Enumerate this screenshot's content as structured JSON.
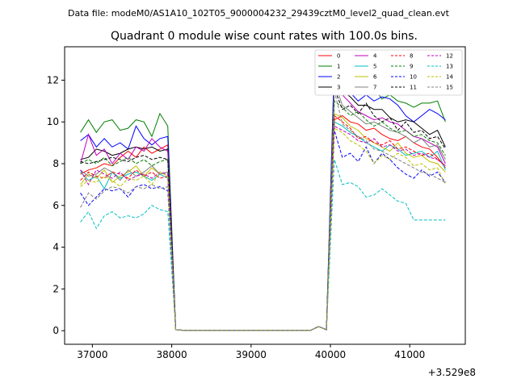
{
  "header": {
    "suptitle": "Data file: modeM0/AS1A10_102T05_9000004232_29439cztM0_level2_quad_clean.evt",
    "title": "Quadrant 0 module wise count rates with 100.0s bins."
  },
  "chart_data": {
    "type": "line",
    "title": "Quadrant 0 module wise count rates with 100.0s bins.",
    "xlabel": "",
    "ylabel": "",
    "x_offset_label": "+3.529e8",
    "x_offset": 352900000,
    "xlim": [
      36650,
      41700
    ],
    "ylim": [
      -0.65,
      13.6
    ],
    "xticks": [
      37000,
      38000,
      39000,
      40000,
      41000
    ],
    "xtick_labels": [
      "37000",
      "38000",
      "39000",
      "40000",
      "41000"
    ],
    "yticks": [
      0,
      2,
      4,
      6,
      8,
      10,
      12
    ],
    "ytick_labels": [
      "0",
      "2",
      "4",
      "6",
      "8",
      "10",
      "12"
    ],
    "x": [
      36850,
      36950,
      37050,
      37150,
      37250,
      37350,
      37450,
      37550,
      37650,
      37750,
      37850,
      37950,
      38050,
      38150,
      38250,
      38350,
      38450,
      38550,
      38650,
      38750,
      38850,
      38950,
      39050,
      39150,
      39250,
      39350,
      39450,
      39550,
      39650,
      39750,
      39850,
      39950,
      40050,
      40150,
      40250,
      40350,
      40450,
      40550,
      40650,
      40750,
      40850,
      40950,
      41050,
      41150,
      41250,
      41350,
      41450
    ],
    "legend_location": "upper right",
    "series": [
      {
        "name": "0",
        "color": "#ff0000",
        "dash": "solid",
        "pre": [
          7.5,
          7.7,
          7.8,
          8.0,
          7.9,
          8.3,
          8.6,
          8.3,
          8.8,
          8.5,
          8.7,
          8.9
        ],
        "post": [
          10.1,
          10.3,
          10.0,
          9.9,
          9.6,
          9.7,
          9.4,
          9.2,
          9.1,
          9.3,
          9.0,
          8.8,
          8.7,
          8.3,
          7.8
        ]
      },
      {
        "name": "1",
        "color": "#008000",
        "dash": "solid",
        "pre": [
          9.5,
          10.1,
          9.5,
          10.0,
          10.1,
          9.6,
          9.7,
          10.1,
          10.0,
          9.3,
          10.4,
          9.8
        ],
        "post": [
          12.8,
          12.7,
          12.3,
          12.1,
          11.8,
          11.6,
          11.1,
          11.3,
          11.0,
          10.9,
          10.7,
          10.9,
          10.9,
          11.0,
          10.0
        ]
      },
      {
        "name": "2",
        "color": "#0000ff",
        "dash": "solid",
        "pre": [
          9.1,
          9.4,
          8.8,
          9.2,
          8.8,
          9.0,
          8.7,
          9.8,
          9.2,
          8.9,
          9.2,
          9.3
        ],
        "post": [
          12.9,
          11.8,
          11.4,
          11.0,
          11.3,
          11.0,
          11.2,
          11.1,
          10.8,
          10.3,
          10.0,
          10.3,
          10.6,
          10.4,
          10.1,
          8.9
        ]
      },
      {
        "name": "3",
        "color": "#000000",
        "dash": "solid",
        "pre": [
          8.2,
          8.3,
          8.7,
          8.6,
          8.4,
          8.5,
          8.7,
          8.8,
          8.7,
          8.8,
          8.6,
          8.7
        ],
        "post": [
          11.7,
          11.5,
          11.2,
          10.8,
          10.8,
          10.6,
          10.6,
          10.2,
          10.0,
          10.1,
          10.0,
          9.7,
          9.4,
          9.6,
          8.8
        ]
      },
      {
        "name": "4",
        "color": "#bf00bf",
        "dash": "solid",
        "pre": [
          8.0,
          9.4,
          8.4,
          8.7,
          8.0,
          8.5,
          8.2,
          8.8,
          8.6,
          9.2,
          8.8,
          8.6
        ],
        "post": [
          11.9,
          11.3,
          10.9,
          10.5,
          10.3,
          10.1,
          10.2,
          10.0,
          9.9,
          9.6,
          9.3,
          9.2,
          9.0,
          8.8,
          8.0
        ]
      },
      {
        "name": "5",
        "color": "#00bfbf",
        "dash": "solid",
        "pre": [
          7.6,
          7.2,
          7.4,
          6.8,
          7.6,
          7.3,
          7.5,
          7.6,
          7.4,
          7.2,
          7.5,
          7.3
        ],
        "post": [
          10.0,
          9.8,
          9.5,
          9.3,
          9.0,
          8.8,
          8.6,
          8.9,
          8.7,
          8.4,
          8.5,
          8.6,
          8.3,
          8.6,
          7.7
        ]
      },
      {
        "name": "6",
        "color": "#bfbf00",
        "dash": "solid",
        "pre": [
          7.0,
          7.5,
          7.3,
          7.7,
          7.1,
          7.4,
          7.6,
          7.9,
          7.4,
          7.8,
          7.5,
          7.6
        ],
        "post": [
          10.4,
          10.2,
          9.8,
          9.6,
          9.2,
          9.0,
          8.8,
          8.6,
          9.0,
          8.5,
          8.3,
          8.4,
          8.1,
          8.0,
          7.6
        ]
      },
      {
        "name": "7",
        "color": "#808080",
        "dash": "solid",
        "pre": [
          7.7,
          7.4,
          7.5,
          7.8,
          7.6,
          7.2,
          7.7,
          7.4,
          7.6,
          7.9,
          7.5,
          7.6
        ],
        "post": [
          11.9,
          10.8,
          10.5,
          10.2,
          9.9,
          10.0,
          9.8,
          9.6,
          9.5,
          9.3,
          9.0,
          9.2,
          8.8,
          8.9,
          8.2
        ]
      },
      {
        "name": "8",
        "color": "#ff0000",
        "dash": "dashed",
        "pre": [
          7.2,
          7.6,
          7.4,
          7.3,
          7.6,
          7.5,
          7.3,
          7.7,
          7.4,
          7.6,
          7.3,
          7.4
        ],
        "post": [
          10.3,
          10.0,
          9.7,
          9.2,
          9.3,
          9.0,
          8.9,
          9.1,
          8.7,
          8.8,
          8.6,
          8.4,
          8.5,
          8.2,
          7.9
        ]
      },
      {
        "name": "9",
        "color": "#008000",
        "dash": "dashed",
        "pre": [
          8.0,
          8.2,
          8.0,
          8.3,
          7.9,
          8.1,
          8.3,
          8.0,
          8.2,
          7.9,
          8.1,
          8.2
        ],
        "post": [
          11.0,
          10.7,
          10.3,
          10.5,
          10.1,
          9.8,
          10.0,
          9.7,
          9.5,
          9.6,
          9.3,
          9.4,
          9.1,
          9.0,
          8.4
        ]
      },
      {
        "name": "10",
        "color": "#0000ff",
        "dash": "dashed",
        "pre": [
          6.6,
          6.0,
          6.4,
          6.8,
          6.7,
          6.8,
          6.4,
          6.9,
          7.0,
          6.8,
          6.9,
          6.7
        ],
        "post": [
          9.6,
          8.3,
          8.5,
          8.1,
          8.8,
          8.0,
          8.5,
          8.2,
          7.8,
          7.5,
          7.3,
          7.7,
          7.4,
          7.6,
          7.1
        ]
      },
      {
        "name": "11",
        "color": "#000000",
        "dash": "dashed",
        "pre": [
          8.1,
          8.0,
          8.1,
          8.2,
          8.3,
          8.2,
          8.1,
          8.3,
          8.4,
          8.2,
          8.3,
          8.2
        ],
        "post": [
          11.6,
          10.6,
          10.8,
          10.4,
          10.9,
          10.3,
          10.0,
          10.2,
          9.6,
          10.0,
          9.5,
          9.6,
          9.2,
          9.3,
          8.7
        ]
      },
      {
        "name": "12",
        "color": "#bf00bf",
        "dash": "dashed",
        "pre": [
          7.7,
          7.0,
          7.7,
          7.5,
          7.3,
          7.6,
          7.2,
          7.4,
          7.5,
          7.3,
          7.6,
          7.5
        ],
        "post": [
          9.8,
          9.6,
          9.4,
          9.1,
          9.0,
          9.2,
          8.8,
          8.9,
          8.6,
          8.7,
          8.4,
          8.5,
          8.3,
          8.2,
          7.9
        ]
      },
      {
        "name": "13",
        "color": "#00bfbf",
        "dash": "dashed",
        "pre": [
          5.2,
          5.7,
          4.9,
          5.5,
          5.7,
          5.4,
          5.5,
          5.4,
          5.6,
          6.0,
          5.8,
          5.7
        ],
        "post": [
          8.2,
          7.0,
          7.1,
          6.9,
          6.4,
          6.5,
          6.8,
          6.5,
          6.2,
          6.1,
          5.3
        ]
      },
      {
        "name": "14",
        "color": "#bfbf00",
        "dash": "dashed",
        "pre": [
          6.9,
          7.2,
          7.1,
          7.4,
          7.2,
          6.9,
          7.3,
          7.2,
          7.4,
          7.0,
          7.6,
          7.4
        ],
        "post": [
          9.7,
          9.5,
          9.1,
          8.9,
          8.6,
          8.0,
          8.4,
          8.2,
          8.5,
          8.3,
          7.9,
          8.0,
          7.7,
          7.8,
          7.0
        ]
      },
      {
        "name": "15",
        "color": "#808080",
        "dash": "dashed",
        "pre": [
          5.9,
          6.6,
          6.3,
          6.7,
          6.9,
          6.8,
          6.6,
          6.9,
          6.8,
          7.0,
          6.8,
          6.9
        ],
        "post": [
          11.5,
          9.9,
          9.6,
          9.3,
          9.1,
          8.7,
          8.6,
          8.4,
          8.2,
          8.0,
          7.8,
          7.6,
          7.5,
          7.3,
          7.1
        ]
      }
    ]
  }
}
